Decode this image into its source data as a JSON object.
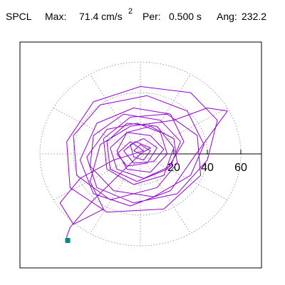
{
  "header": {
    "station": "SPCL",
    "max_label": "Max:",
    "max_value": "71.4 cm/s",
    "max_unit_exponent": "2",
    "period_label": "Per:",
    "period_value": "0.500 s",
    "angle_label": "Ang:",
    "angle_value": "232.2"
  },
  "colors": {
    "trace": "#9400d3",
    "end_marker": "#008b7b",
    "grid": "#888888",
    "axis": "#000000",
    "frame": "#000000"
  },
  "chart_data": {
    "type": "scatter",
    "subtype": "polar-particle-motion",
    "units": "cm/s^2",
    "rings": [
      20,
      40,
      60
    ],
    "ring_labels": [
      "20",
      "40",
      "60"
    ],
    "spokes_deg": [
      0,
      30,
      60,
      90,
      120,
      150,
      180,
      210,
      240,
      270,
      300,
      330
    ],
    "max_amplitude": 71.4,
    "max_angle_deg": 232.2,
    "grid": true,
    "end_point": {
      "x": -43.4,
      "y": -56.5
    },
    "trace_points": [
      [
        0,
        0
      ],
      [
        6,
        4
      ],
      [
        -3,
        8
      ],
      [
        -10,
        2
      ],
      [
        -4,
        -6
      ],
      [
        8,
        -5
      ],
      [
        14,
        3
      ],
      [
        6,
        12
      ],
      [
        -8,
        14
      ],
      [
        -18,
        4
      ],
      [
        -14,
        -10
      ],
      [
        2,
        -16
      ],
      [
        18,
        -8
      ],
      [
        24,
        8
      ],
      [
        12,
        22
      ],
      [
        -10,
        26
      ],
      [
        -28,
        12
      ],
      [
        -30,
        -8
      ],
      [
        -16,
        -24
      ],
      [
        8,
        -28
      ],
      [
        30,
        -14
      ],
      [
        38,
        6
      ],
      [
        28,
        28
      ],
      [
        4,
        38
      ],
      [
        -24,
        32
      ],
      [
        -40,
        12
      ],
      [
        -38,
        -14
      ],
      [
        -18,
        -30
      ],
      [
        10,
        -22
      ],
      [
        22,
        -6
      ],
      [
        20,
        10
      ],
      [
        6,
        18
      ],
      [
        -8,
        14
      ],
      [
        -14,
        2
      ],
      [
        -8,
        -10
      ],
      [
        6,
        -12
      ],
      [
        16,
        0
      ],
      [
        12,
        14
      ],
      [
        -2,
        20
      ],
      [
        -20,
        16
      ],
      [
        -32,
        -2
      ],
      [
        -26,
        -22
      ],
      [
        -4,
        -32
      ],
      [
        22,
        -26
      ],
      [
        40,
        -4
      ],
      [
        46,
        22
      ],
      [
        30,
        40
      ],
      [
        0,
        44
      ],
      [
        -28,
        34
      ],
      [
        -44,
        8
      ],
      [
        -42,
        -22
      ],
      [
        -20,
        -38
      ],
      [
        14,
        -36
      ],
      [
        36,
        -14
      ],
      [
        34,
        12
      ],
      [
        16,
        26
      ],
      [
        -6,
        24
      ],
      [
        -22,
        10
      ],
      [
        -20,
        -10
      ],
      [
        -4,
        -20
      ],
      [
        14,
        -14
      ],
      [
        20,
        4
      ],
      [
        10,
        18
      ],
      [
        -8,
        20
      ],
      [
        -20,
        8
      ],
      [
        -18,
        -10
      ],
      [
        -2,
        -18
      ],
      [
        16,
        -10
      ],
      [
        26,
        8
      ],
      [
        18,
        26
      ],
      [
        -4,
        30
      ],
      [
        -26,
        20
      ],
      [
        -36,
        -4
      ],
      [
        -28,
        -26
      ],
      [
        -6,
        -34
      ],
      [
        18,
        -24
      ],
      [
        32,
        -2
      ],
      [
        52,
        28
      ],
      [
        40,
        30
      ],
      [
        20,
        22
      ],
      [
        -6,
        18
      ],
      [
        -24,
        6
      ],
      [
        -30,
        -18
      ],
      [
        -22,
        -36
      ],
      [
        -40,
        -46
      ],
      [
        -48,
        -32
      ],
      [
        -36,
        -16
      ],
      [
        -16,
        -4
      ],
      [
        2,
        2
      ],
      [
        -6,
        8
      ],
      [
        -14,
        0
      ],
      [
        -8,
        -8
      ],
      [
        4,
        -6
      ],
      [
        10,
        4
      ],
      [
        2,
        10
      ],
      [
        -6,
        6
      ],
      [
        -4,
        -2
      ],
      [
        2,
        -4
      ],
      [
        6,
        2
      ],
      [
        0,
        6
      ],
      [
        -4,
        2
      ],
      [
        0,
        0
      ],
      [
        -28,
        -30
      ],
      [
        -42,
        -48
      ],
      [
        -44,
        -54
      ],
      [
        -43.4,
        -56.5
      ]
    ]
  }
}
